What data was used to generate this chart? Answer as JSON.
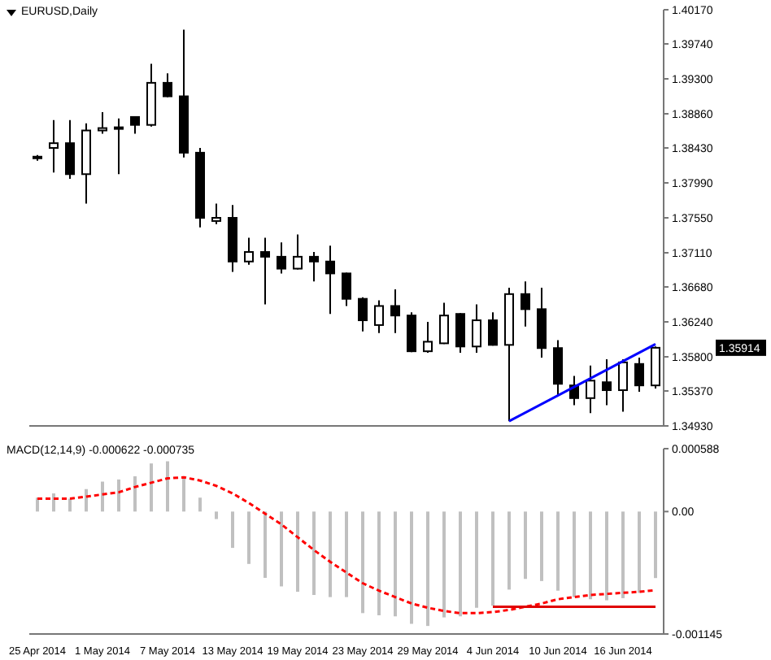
{
  "chart_data": [
    {
      "type": "candlestick",
      "title": "EURUSD,Daily",
      "ohlc": [
        [
          1.383,
          1.3834,
          1.3827,
          1.3832
        ],
        [
          1.3843,
          1.3878,
          1.3812,
          1.3849
        ],
        [
          1.3849,
          1.3878,
          1.3804,
          1.381
        ],
        [
          1.381,
          1.3874,
          1.3773,
          1.3865
        ],
        [
          1.3865,
          1.3888,
          1.3861,
          1.3868
        ],
        [
          1.3868,
          1.388,
          1.381,
          1.3869
        ],
        [
          1.3882,
          1.3883,
          1.3861,
          1.3872
        ],
        [
          1.3872,
          1.3949,
          1.387,
          1.3925
        ],
        [
          1.3925,
          1.3937,
          1.3907,
          1.3908
        ],
        [
          1.3908,
          1.3992,
          1.3831,
          1.3837
        ],
        [
          1.3837,
          1.3843,
          1.3743,
          1.3755
        ],
        [
          1.3751,
          1.3773,
          1.3747,
          1.3755
        ],
        [
          1.3755,
          1.3771,
          1.3687,
          1.37
        ],
        [
          1.37,
          1.373,
          1.3696,
          1.3712
        ],
        [
          1.3712,
          1.373,
          1.3646,
          1.3706
        ],
        [
          1.3706,
          1.3724,
          1.3685,
          1.3691
        ],
        [
          1.3691,
          1.3734,
          1.369,
          1.3706
        ],
        [
          1.3706,
          1.3712,
          1.3675,
          1.37
        ],
        [
          1.37,
          1.372,
          1.3634,
          1.3685
        ],
        [
          1.3685,
          1.3686,
          1.3644,
          1.3653
        ],
        [
          1.3653,
          1.3655,
          1.3612,
          1.3626
        ],
        [
          1.362,
          1.3651,
          1.361,
          1.3644
        ],
        [
          1.3644,
          1.3665,
          1.361,
          1.3632
        ],
        [
          1.3632,
          1.3636,
          1.3586,
          1.3587
        ],
        [
          1.3587,
          1.3624,
          1.3585,
          1.3599
        ],
        [
          1.3597,
          1.3648,
          1.3596,
          1.3632
        ],
        [
          1.3634,
          1.3635,
          1.3585,
          1.3593
        ],
        [
          1.3593,
          1.3646,
          1.3585,
          1.3626
        ],
        [
          1.3626,
          1.3636,
          1.3594,
          1.3595
        ],
        [
          1.3595,
          1.3667,
          1.3499,
          1.3659
        ],
        [
          1.3659,
          1.3675,
          1.3618,
          1.364
        ],
        [
          1.364,
          1.3667,
          1.3579,
          1.3591
        ],
        [
          1.3591,
          1.3601,
          1.3532,
          1.3546
        ],
        [
          1.3544,
          1.3556,
          1.3519,
          1.3528
        ],
        [
          1.3528,
          1.3569,
          1.3509,
          1.355
        ],
        [
          1.3548,
          1.3577,
          1.3519,
          1.3538
        ],
        [
          1.3538,
          1.3577,
          1.3511,
          1.3573
        ],
        [
          1.3571,
          1.3579,
          1.3536,
          1.3544
        ],
        [
          1.3544,
          1.3593,
          1.354,
          1.35914
        ]
      ],
      "series": [
        {
          "type": "line",
          "color": "#0000ff",
          "values": [
            null,
            null,
            null,
            null,
            null,
            null,
            null,
            null,
            null,
            null,
            null,
            null,
            null,
            null,
            null,
            null,
            null,
            null,
            null,
            null,
            null,
            null,
            null,
            null,
            null,
            null,
            null,
            null,
            null,
            1.3499,
            null,
            null,
            null,
            null,
            null,
            null,
            null,
            null,
            1.3596
          ]
        }
      ],
      "ylim": [
        1.3493,
        1.4017
      ],
      "yticks": [
        {
          "value": 1.4017,
          "label": "1.40170"
        },
        {
          "value": 1.3974,
          "label": "1.39740"
        },
        {
          "value": 1.393,
          "label": "1.39300"
        },
        {
          "value": 1.3886,
          "label": "1.38860"
        },
        {
          "value": 1.3843,
          "label": "1.38430"
        },
        {
          "value": 1.3799,
          "label": "1.37990"
        },
        {
          "value": 1.3755,
          "label": "1.37550"
        },
        {
          "value": 1.3711,
          "label": "1.37110"
        },
        {
          "value": 1.3668,
          "label": "1.36680"
        },
        {
          "value": 1.3624,
          "label": "1.36240"
        },
        {
          "value": 1.358,
          "label": "1.35800"
        },
        {
          "value": 1.3537,
          "label": "1.35370"
        },
        {
          "value": 1.3493,
          "label": "1.34930"
        }
      ],
      "annotations": [
        "1.35914"
      ],
      "tick_labels": "y"
    },
    {
      "type": "bar",
      "title": "MACD(12,14,9) -0.000622 -0.000735",
      "categories": [
        "25 Apr 2014",
        null,
        null,
        null,
        "1 May 2014",
        null,
        null,
        null,
        "7 May 2014",
        null,
        null,
        null,
        "13 May 2014",
        null,
        null,
        null,
        "19 May 2014",
        null,
        null,
        null,
        "23 May 2014",
        null,
        null,
        null,
        "29 May 2014",
        null,
        null,
        null,
        "4 Jun 2014",
        null,
        null,
        null,
        "10 Jun 2014",
        null,
        null,
        null,
        "16 Jun 2014",
        null,
        null
      ],
      "series": [
        {
          "type": "bar",
          "color": "#c0c0c0",
          "values": [
            0.00013,
            0.00017,
            0.00012,
            0.00021,
            0.00028,
            0.0003,
            0.00033,
            0.00045,
            0.00047,
            0.00033,
            0.00013,
            -7e-05,
            -0.00034,
            -0.00049,
            -0.00062,
            -0.0007,
            -0.00075,
            -0.00078,
            -0.0008,
            -0.0008,
            -0.00095,
            -0.00097,
            -0.00098,
            -0.00105,
            -0.00107,
            -0.00099,
            -0.00098,
            -0.0009,
            -0.00088,
            -0.00073,
            -0.00063,
            -0.00065,
            -0.00074,
            -0.0008,
            -0.00082,
            -0.00083,
            -0.00081,
            -0.00076,
            -0.000622
          ]
        },
        {
          "type": "line",
          "color": "#ff0000",
          "line_style": "dashed",
          "values": [
            0.00012,
            0.00012,
            0.00012,
            0.00014,
            0.00016,
            0.00018,
            0.00023,
            0.00027,
            0.00031,
            0.00032,
            0.00029,
            0.00024,
            0.00017,
            8e-05,
            -2e-05,
            -0.00012,
            -0.00024,
            -0.00036,
            -0.00047,
            -0.00057,
            -0.00067,
            -0.00074,
            -0.0008,
            -0.00086,
            -0.0009,
            -0.00093,
            -0.00095,
            -0.00095,
            -0.00094,
            -0.00092,
            -0.00089,
            -0.00086,
            -0.00082,
            -0.0008,
            -0.00078,
            -0.00077,
            -0.00076,
            -0.00075,
            -0.000735
          ]
        },
        {
          "type": "line",
          "color": "#e00000",
          "line_style": "solid",
          "values": [
            null,
            null,
            null,
            null,
            null,
            null,
            null,
            null,
            null,
            null,
            null,
            null,
            null,
            null,
            null,
            null,
            null,
            null,
            null,
            null,
            null,
            null,
            null,
            null,
            null,
            null,
            null,
            null,
            -0.00089,
            null,
            null,
            null,
            null,
            null,
            null,
            null,
            null,
            null,
            -0.00089
          ]
        }
      ],
      "ylim": [
        -0.001145,
        0.000588
      ],
      "yticks": [
        0.000588,
        {
          "value": 0,
          "label": "0.00"
        },
        -0.001145
      ]
    }
  ]
}
